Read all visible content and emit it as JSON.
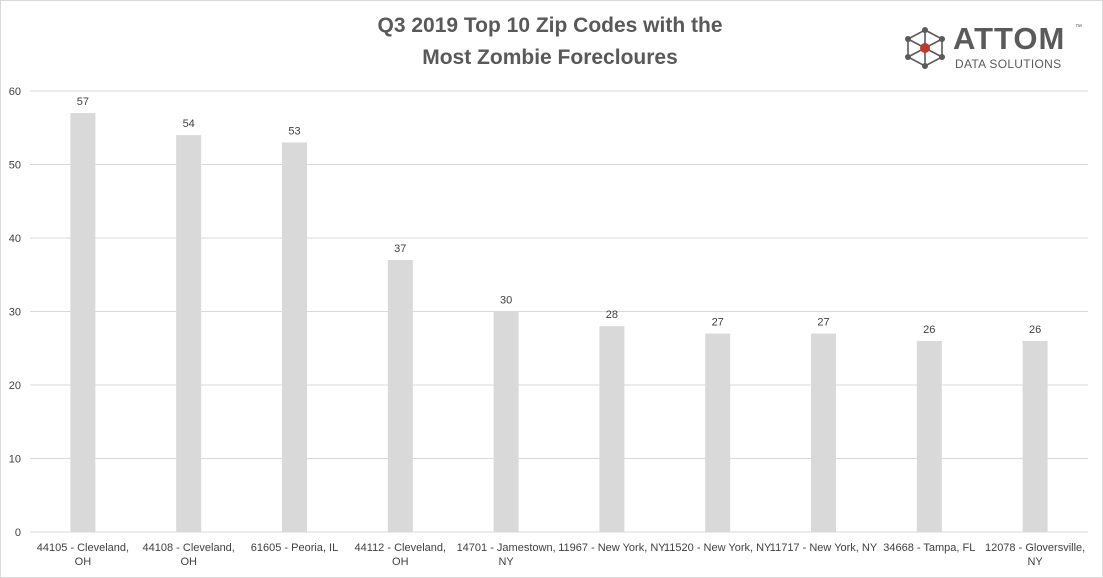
{
  "chart_data": {
    "type": "bar",
    "title": [
      "Q3 2019 Top 10 Zip Codes with the",
      "Most Zombie Forecloures"
    ],
    "categories": [
      [
        "44105 - Cleveland,",
        "OH"
      ],
      [
        "44108 - Cleveland,",
        "OH"
      ],
      [
        "61605 - Peoria, IL"
      ],
      [
        "44112 - Cleveland,",
        "OH"
      ],
      [
        "14701 - Jamestown,",
        "NY"
      ],
      [
        "11967 - New York, NY"
      ],
      [
        "11520 - New York, NY"
      ],
      [
        "11717 - New York, NY"
      ],
      [
        "34668 - Tampa, FL"
      ],
      [
        "12078 - Gloversville,",
        "NY"
      ]
    ],
    "values": [
      57,
      54,
      53,
      37,
      30,
      28,
      27,
      27,
      26,
      26
    ],
    "ylim": [
      0,
      60
    ],
    "yticks": [
      0,
      10,
      20,
      30,
      40,
      50,
      60
    ],
    "xlabel": "",
    "ylabel": "",
    "grid": true,
    "bar_color": "#d9d9d9",
    "gridline_color": "#d9d9d9",
    "label_color": "#404040"
  },
  "logo": {
    "name": "ATTOM",
    "tm": "™",
    "subtitle": "DATA SOLUTIONS",
    "accent_color": "#c0392b"
  }
}
